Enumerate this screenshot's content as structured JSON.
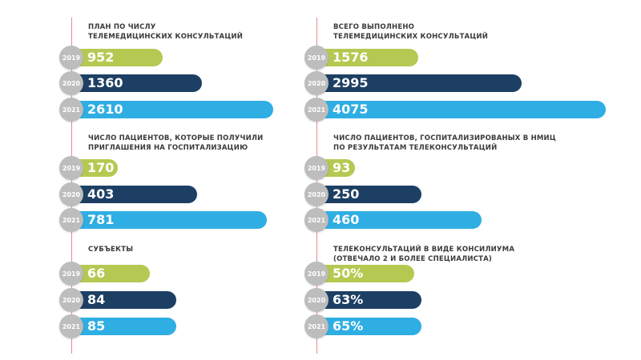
{
  "colors": {
    "2019": "#b5c952",
    "2020": "#1d3f63",
    "2021": "#2eaee3",
    "year_badge": "#bdbdbd",
    "timeline": "#e88a8f"
  },
  "chart_data": [
    {
      "type": "bar",
      "title": "ПЛАН ПО ЧИСЛУ\nТЕЛЕМЕДИЦИНСКИХ КОНСУЛЬТАЦИЙ",
      "categories": [
        "2019",
        "2020",
        "2021"
      ],
      "values": [
        952,
        1360,
        2610
      ],
      "labels": [
        "952",
        "1360",
        "2610"
      ]
    },
    {
      "type": "bar",
      "title": "ЧИСЛО ПАЦИЕНТОВ, КОТОРЫЕ  ПОЛУЧИЛИ\nПРИГЛАШЕНИЯ НА ГОСПИТАЛИЗАЦИЮ",
      "categories": [
        "2019",
        "2020",
        "2021"
      ],
      "values": [
        170,
        403,
        781
      ],
      "labels": [
        "170",
        "403",
        "781"
      ]
    },
    {
      "type": "bar",
      "title": "СУБЪЕКТЫ",
      "categories": [
        "2019",
        "2020",
        "2021"
      ],
      "values": [
        66,
        84,
        85
      ],
      "labels": [
        "66",
        "84",
        "85"
      ]
    },
    {
      "type": "bar",
      "title": "ВСЕГО ВЫПОЛНЕНО\nТЕЛЕМЕДИЦИНСКИХ КОНСУЛЬТАЦИЙ",
      "categories": [
        "2019",
        "2020",
        "2021"
      ],
      "values": [
        1576,
        2995,
        4075
      ],
      "labels": [
        "1576",
        "2995",
        "4075"
      ]
    },
    {
      "type": "bar",
      "title": "ЧИСЛО ПАЦИЕНТОВ, ГОСПИТАЛИЗИРОВАНЫХ В НМИЦ\nПО РЕЗУЛЬТАТАМ ТЕЛЕКОНСУЛЬТАЦИЙ",
      "categories": [
        "2019",
        "2020",
        "2021"
      ],
      "values": [
        93,
        250,
        460
      ],
      "labels": [
        "93",
        "250",
        "460"
      ]
    },
    {
      "type": "bar",
      "title": "ТЕЛЕКОНСУЛЬТАЦИЙ В ВИДЕ КОНСИЛИУМА\n(ОТВЕЧАЛО 2 И БОЛЕЕ СПЕЦИАЛИСТА)",
      "categories": [
        "2019",
        "2020",
        "2021"
      ],
      "values": [
        50,
        63,
        65
      ],
      "labels": [
        "50%",
        "63%",
        "65%"
      ],
      "unit": "%"
    }
  ]
}
